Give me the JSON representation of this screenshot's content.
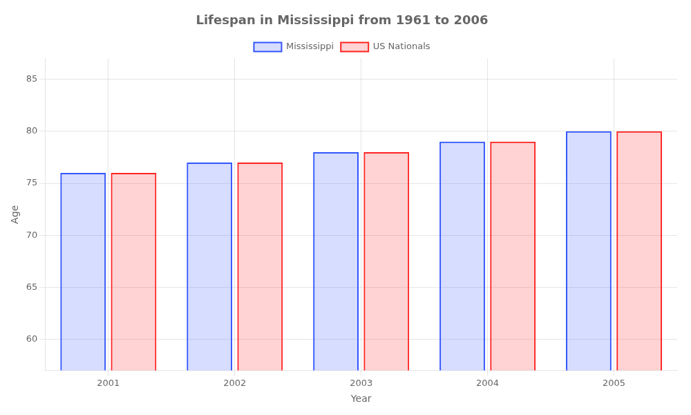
{
  "chart_data": {
    "type": "bar",
    "title": "Lifespan in Mississippi from 1961 to 2006",
    "xlabel": "Year",
    "ylabel": "Age",
    "categories": [
      "2001",
      "2002",
      "2003",
      "2004",
      "2005"
    ],
    "series": [
      {
        "name": "Mississippi",
        "color": "#3355ff",
        "values": [
          76,
          77,
          78,
          79,
          80
        ]
      },
      {
        "name": "US Nationals",
        "color": "#ff2222",
        "values": [
          76,
          77,
          78,
          79,
          80
        ]
      }
    ],
    "ylim": [
      57,
      87
    ],
    "yticks": [
      60,
      65,
      70,
      75,
      80,
      85
    ],
    "grid": true,
    "legend": "top"
  }
}
